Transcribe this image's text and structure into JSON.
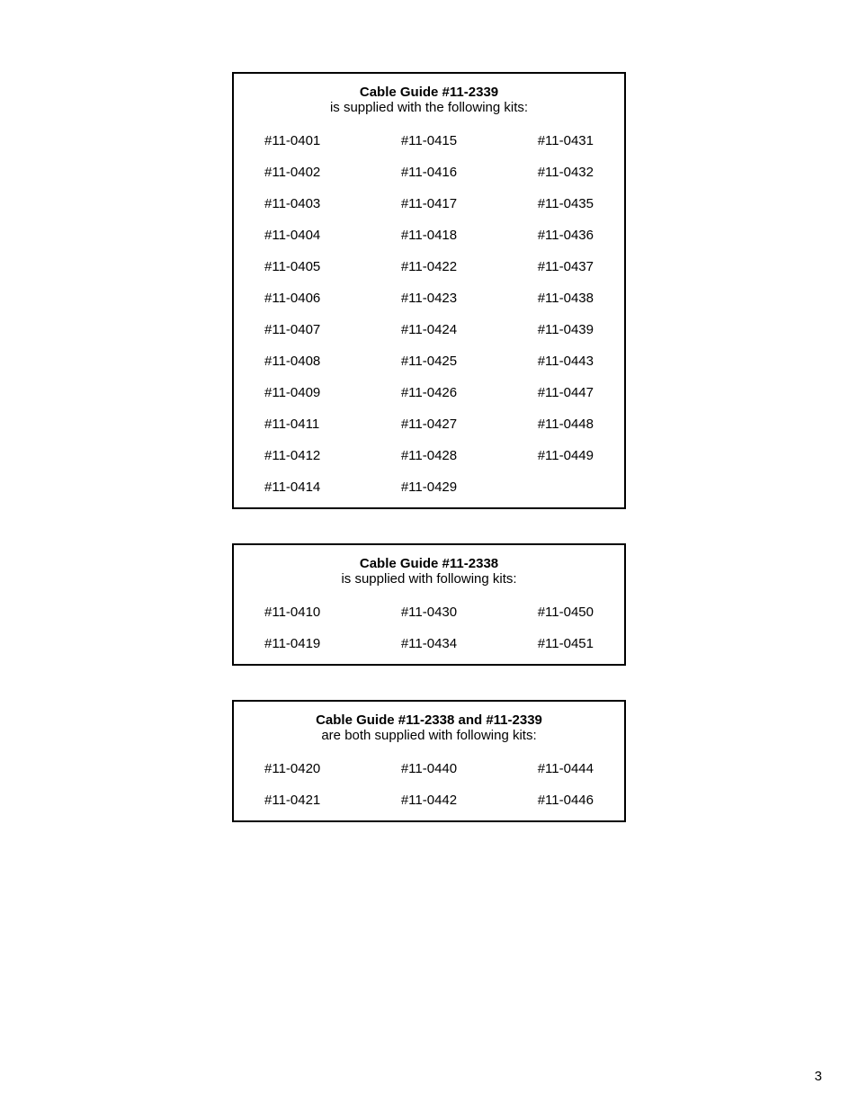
{
  "page": {
    "number": "3",
    "background_color": "#ffffff",
    "text_color": "#000000",
    "border_color": "#000000",
    "font_size_title": 15,
    "font_size_body": 15
  },
  "boxes": [
    {
      "title": "Cable Guide #11-2339",
      "subtitle": "is supplied with the following kits:",
      "columns": [
        [
          "#11-0401",
          "#11-0402",
          "#11-0403",
          "#11-0404",
          "#11-0405",
          "#11-0406",
          "#11-0407",
          "#11-0408",
          "#11-0409",
          "#11-0411",
          "#11-0412",
          "#11-0414"
        ],
        [
          "#11-0415",
          "#11-0416",
          "#11-0417",
          "#11-0418",
          "#11-0422",
          "#11-0423",
          "#11-0424",
          "#11-0425",
          "#11-0426",
          "#11-0427",
          "#11-0428",
          "#11-0429"
        ],
        [
          "#11-0431",
          "#11-0432",
          "#11-0435",
          "#11-0436",
          "#11-0437",
          "#11-0438",
          "#11-0439",
          "#11-0443",
          "#11-0447",
          "#11-0448",
          "#11-0449",
          ""
        ]
      ]
    },
    {
      "title": "Cable Guide #11-2338",
      "subtitle": "is supplied with following kits:",
      "columns": [
        [
          "#11-0410",
          "#11-0419"
        ],
        [
          "#11-0430",
          "#11-0434"
        ],
        [
          "#11-0450",
          "#11-0451"
        ]
      ]
    },
    {
      "title": "Cable Guide #11-2338 and #11-2339",
      "subtitle": "are both supplied with following kits:",
      "columns": [
        [
          "#11-0420",
          "#11-0421"
        ],
        [
          "#11-0440",
          "#11-0442"
        ],
        [
          "#11-0444",
          "#11-0446"
        ]
      ]
    }
  ]
}
